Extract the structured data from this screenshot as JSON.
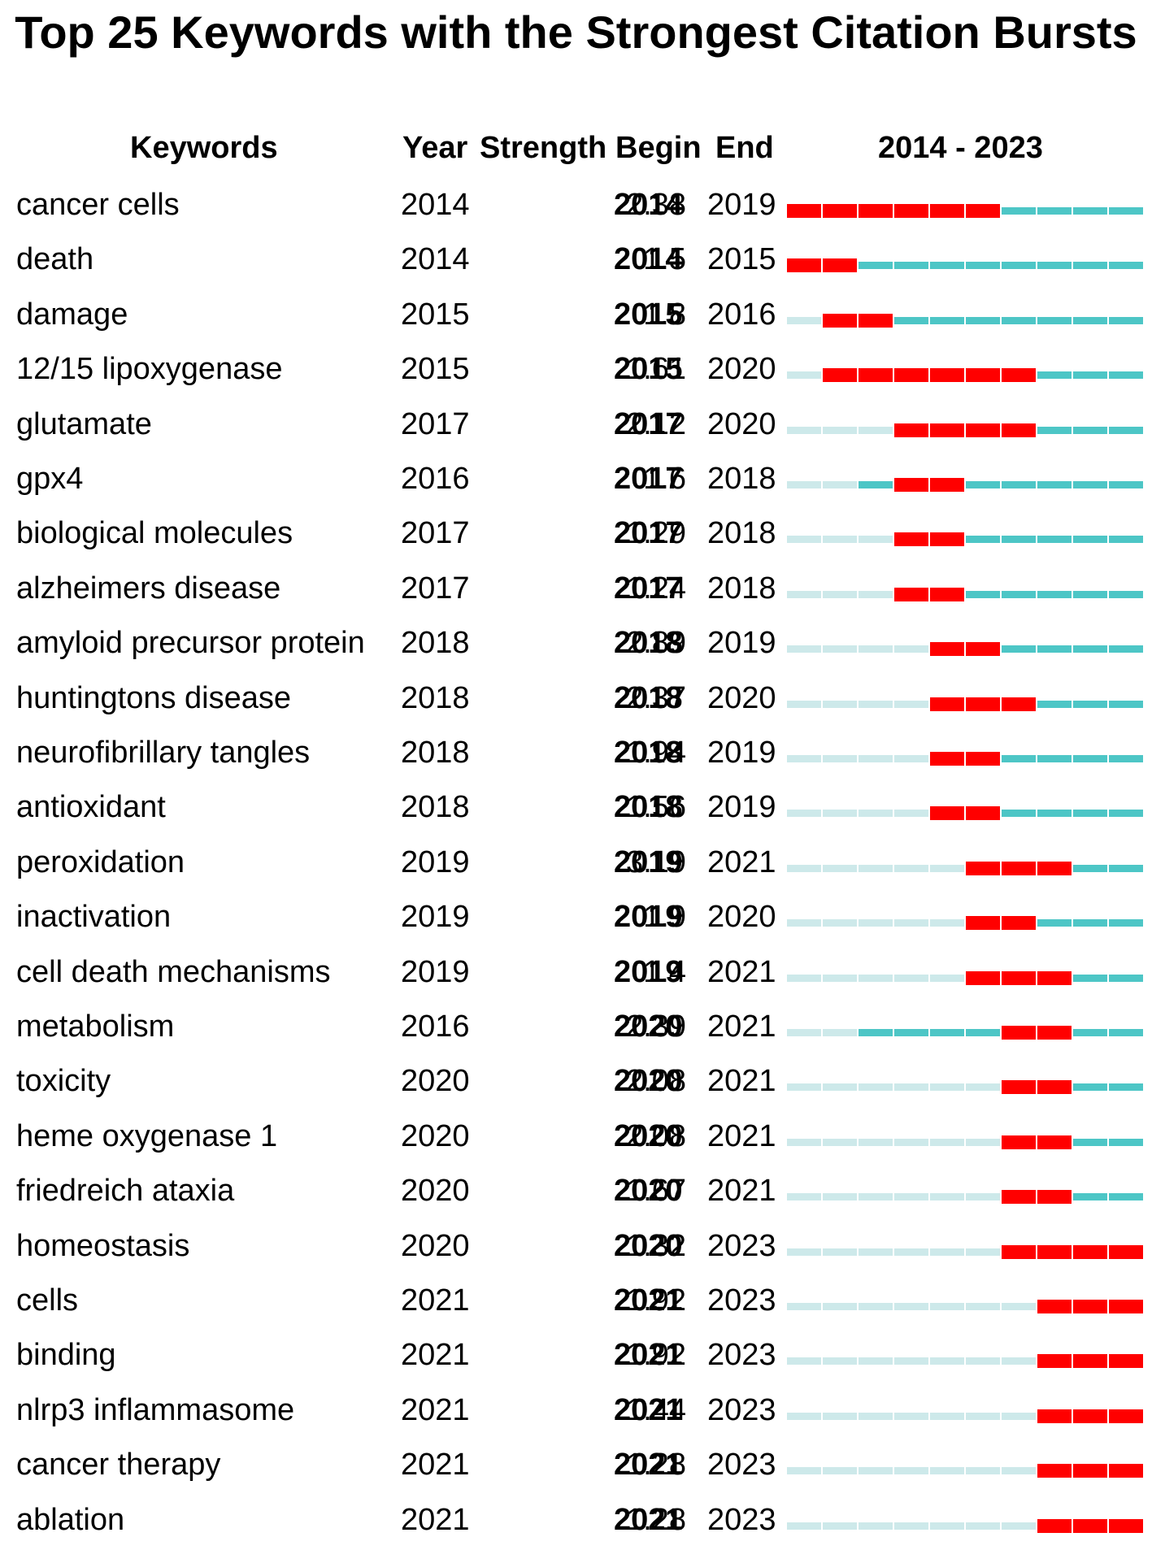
{
  "title": "Top 25 Keywords with the Strongest Citation Bursts",
  "headers": {
    "keywords": "Keywords",
    "year": "Year",
    "strength": "Strength",
    "begin": "Begin",
    "end": "End",
    "range": "2014 - 2023"
  },
  "colors": {
    "burst": "#ff0000",
    "active": "#4dc6c6",
    "inactive": "#cde9ea"
  },
  "chart_data": {
    "type": "table",
    "title": "Top 25 Keywords with the Strongest Citation Bursts",
    "timeline_start": 2014,
    "timeline_end": 2023,
    "columns": [
      "Keywords",
      "Year",
      "Strength",
      "Begin",
      "End",
      "2014 - 2023"
    ],
    "rows": [
      {
        "keyword": "cancer cells",
        "year": "2014",
        "strength": "2.38",
        "begin": "2014",
        "end": "2019"
      },
      {
        "keyword": "death",
        "year": "2014",
        "strength": "1.5",
        "begin": "2014",
        "end": "2015"
      },
      {
        "keyword": "damage",
        "year": "2015",
        "strength": "1.8",
        "begin": "2015",
        "end": "2016"
      },
      {
        "keyword": "12/15 lipoxygenase",
        "year": "2015",
        "strength": "1.61",
        "begin": "2015",
        "end": "2020"
      },
      {
        "keyword": "glutamate",
        "year": "2017",
        "strength": "2.12",
        "begin": "2017",
        "end": "2020"
      },
      {
        "keyword": "gpx4",
        "year": "2016",
        "strength": "1.6",
        "begin": "2017",
        "end": "2018"
      },
      {
        "keyword": "biological molecules",
        "year": "2017",
        "strength": "1.29",
        "begin": "2017",
        "end": "2018"
      },
      {
        "keyword": "alzheimers disease",
        "year": "2017",
        "strength": "1.24",
        "begin": "2017",
        "end": "2018"
      },
      {
        "keyword": "amyloid precursor protein",
        "year": "2018",
        "strength": "2.89",
        "begin": "2018",
        "end": "2019"
      },
      {
        "keyword": "huntingtons disease",
        "year": "2018",
        "strength": "2.37",
        "begin": "2018",
        "end": "2020"
      },
      {
        "keyword": "neurofibrillary tangles",
        "year": "2018",
        "strength": "1.94",
        "begin": "2018",
        "end": "2019"
      },
      {
        "keyword": "antioxidant",
        "year": "2018",
        "strength": "1.56",
        "begin": "2018",
        "end": "2019"
      },
      {
        "keyword": "peroxidation",
        "year": "2019",
        "strength": "3.19",
        "begin": "2019",
        "end": "2021"
      },
      {
        "keyword": "inactivation",
        "year": "2019",
        "strength": "1.9",
        "begin": "2019",
        "end": "2020"
      },
      {
        "keyword": "cell death mechanisms",
        "year": "2019",
        "strength": "1.4",
        "begin": "2019",
        "end": "2021"
      },
      {
        "keyword": "metabolism",
        "year": "2016",
        "strength": "2.39",
        "begin": "2020",
        "end": "2021"
      },
      {
        "keyword": "toxicity",
        "year": "2020",
        "strength": "2.08",
        "begin": "2020",
        "end": "2021"
      },
      {
        "keyword": "heme oxygenase 1",
        "year": "2020",
        "strength": "2.08",
        "begin": "2020",
        "end": "2021"
      },
      {
        "keyword": "friedreich ataxia",
        "year": "2020",
        "strength": "1.67",
        "begin": "2020",
        "end": "2021"
      },
      {
        "keyword": "homeostasis",
        "year": "2020",
        "strength": "1.32",
        "begin": "2020",
        "end": "2023"
      },
      {
        "keyword": "cells",
        "year": "2021",
        "strength": "1.92",
        "begin": "2021",
        "end": "2023"
      },
      {
        "keyword": "binding",
        "year": "2021",
        "strength": "1.92",
        "begin": "2021",
        "end": "2023"
      },
      {
        "keyword": "nlrp3 inflammasome",
        "year": "2021",
        "strength": "1.44",
        "begin": "2021",
        "end": "2023"
      },
      {
        "keyword": "cancer therapy",
        "year": "2021",
        "strength": "1.28",
        "begin": "2021",
        "end": "2023"
      },
      {
        "keyword": "ablation",
        "year": "2021",
        "strength": "1.28",
        "begin": "2021",
        "end": "2023"
      }
    ]
  }
}
